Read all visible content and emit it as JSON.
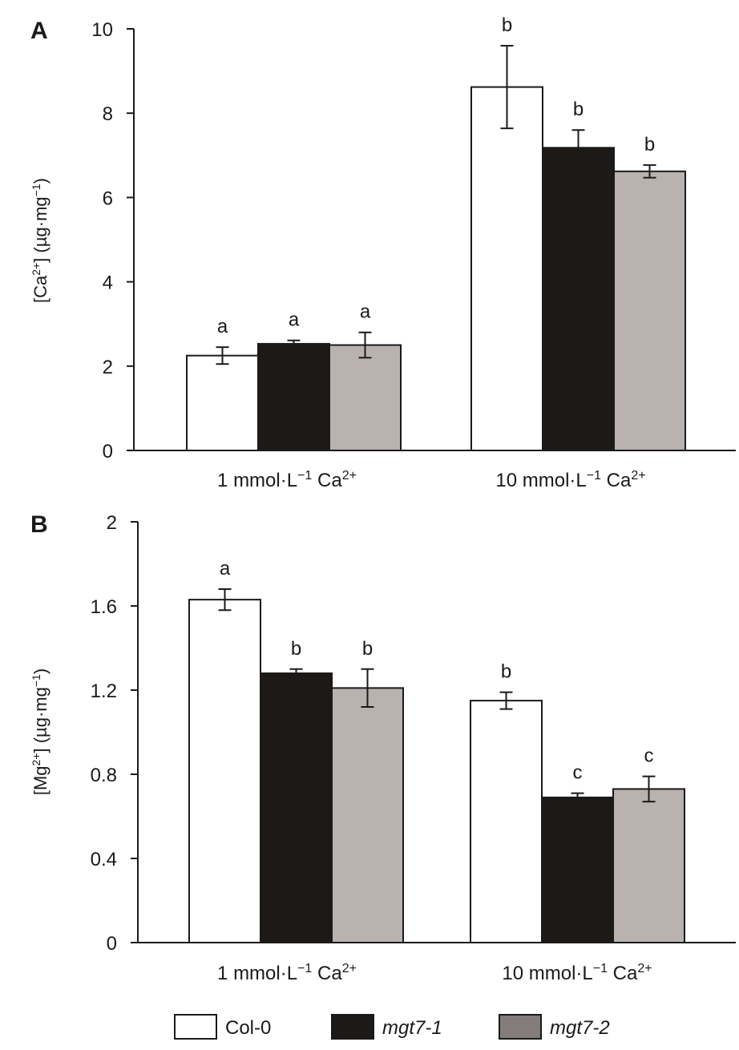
{
  "colors": {
    "col0": "#ffffff",
    "mgt7_1": "#1c1916",
    "mgt7_2": "#bab2af",
    "mgt7_2_legend": "#847c7a",
    "axis": "#1a1a1a"
  },
  "legend": {
    "placement": "bottom-center",
    "items": [
      {
        "label": "Col-0",
        "italic": false
      },
      {
        "label": "mgt7-1",
        "italic": true
      },
      {
        "label": "mgt7-2",
        "italic": true
      }
    ]
  },
  "chart_data": [
    {
      "type": "bar",
      "panel_label": "A",
      "ylabel": "[Ca2+] (µg·mg−1)",
      "ylim": [
        0,
        10
      ],
      "yticks": [
        "0",
        "2",
        "4",
        "6",
        "8",
        "10"
      ],
      "categories": [
        {
          "text": "1 mmol·L",
          "sup1": "−1",
          "mid": " Ca",
          "sup2": "2+"
        },
        {
          "text": "10 mmol·L",
          "sup1": "−1",
          "mid": " Ca",
          "sup2": "2+"
        }
      ],
      "series": [
        {
          "name": "Col-0",
          "values": [
            2.25,
            8.62
          ],
          "errors": [
            0.2,
            0.98
          ],
          "letters": [
            "a",
            "b"
          ]
        },
        {
          "name": "mgt7-1",
          "values": [
            2.53,
            7.18
          ],
          "errors": [
            0.08,
            0.42
          ],
          "letters": [
            "a",
            "b"
          ]
        },
        {
          "name": "mgt7-2",
          "values": [
            2.5,
            6.62
          ],
          "errors": [
            0.3,
            0.15
          ],
          "letters": [
            "a",
            "b"
          ]
        }
      ]
    },
    {
      "type": "bar",
      "panel_label": "B",
      "ylabel": "[Mg2+] (µg·mg−1)",
      "ylim": [
        0,
        2
      ],
      "yticks": [
        "0",
        "0.4",
        "0.8",
        "1.2",
        "1.6",
        "2"
      ],
      "categories": [
        {
          "text": "1 mmol·L",
          "sup1": "−1",
          "mid": " Ca",
          "sup2": "2+"
        },
        {
          "text": "10 mmol·L",
          "sup1": "−1",
          "mid": " Ca",
          "sup2": "2+"
        }
      ],
      "series": [
        {
          "name": "Col-0",
          "values": [
            1.63,
            1.15
          ],
          "errors": [
            0.05,
            0.04
          ],
          "letters": [
            "a",
            "b"
          ]
        },
        {
          "name": "mgt7-1",
          "values": [
            1.28,
            0.69
          ],
          "errors": [
            0.02,
            0.02
          ],
          "letters": [
            "b",
            "c"
          ]
        },
        {
          "name": "mgt7-2",
          "values": [
            1.21,
            0.73
          ],
          "errors": [
            0.09,
            0.06
          ],
          "letters": [
            "b",
            "c"
          ]
        }
      ]
    }
  ]
}
